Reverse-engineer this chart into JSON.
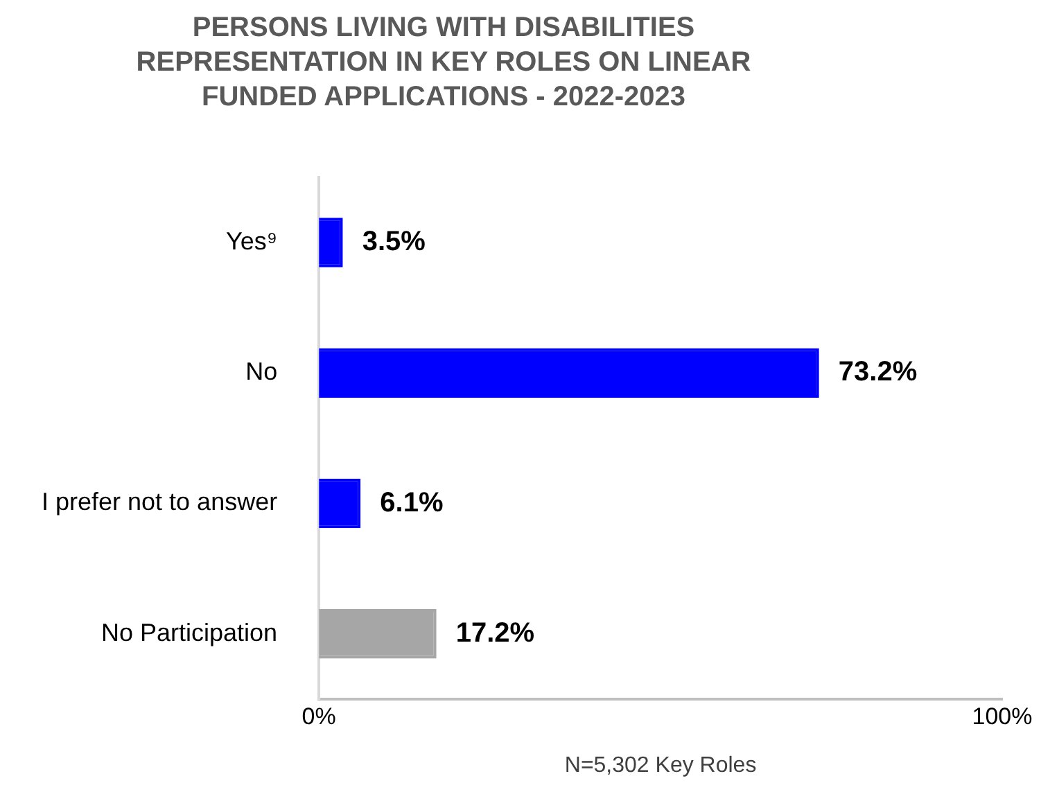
{
  "chart_data": {
    "type": "bar",
    "orientation": "horizontal",
    "title": "PERSONS LIVING WITH DISABILITIES REPRESENTATION IN KEY ROLES ON LINEAR FUNDED APPLICATIONS - 2022-2023",
    "categories": [
      "Yes⁹",
      "No",
      "I prefer not to answer",
      "No Participation"
    ],
    "values": [
      3.5,
      73.2,
      6.1,
      17.2
    ],
    "colors": [
      "#0000ff",
      "#0000ff",
      "#0000ff",
      "#a6a6a6"
    ],
    "value_labels": [
      "3.5%",
      "73.2%",
      "6.1%",
      "17.2%"
    ],
    "xlim": [
      0,
      100
    ],
    "xticks": [
      {
        "value": 0,
        "label": "0%"
      },
      {
        "value": 100,
        "label": "100%"
      }
    ],
    "xlabel": "N=5,302 Key Roles",
    "grid": false,
    "legend": false
  }
}
